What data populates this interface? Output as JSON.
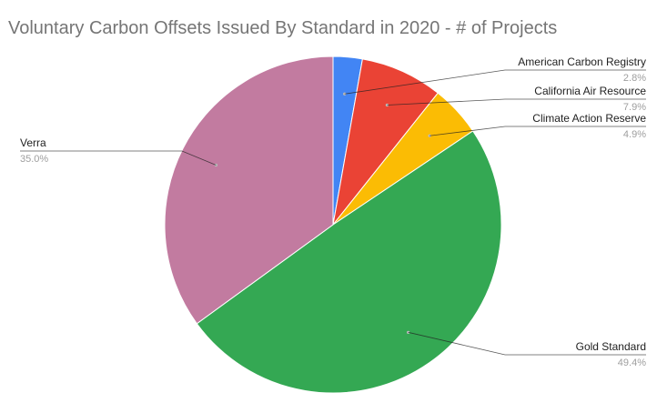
{
  "chart_data": {
    "type": "pie",
    "title": "Voluntary Carbon Offsets Issued By Standard in 2020 - # of Projects",
    "start_angle_deg": 0,
    "direction": "clockwise",
    "slices": [
      {
        "label": "American Carbon Registry",
        "value": 2.8,
        "display": "2.8%",
        "color": "#4285f4",
        "label_side": "right"
      },
      {
        "label": "California Air Resource",
        "value": 7.9,
        "display": "7.9%",
        "color": "#ea4335",
        "label_side": "right"
      },
      {
        "label": "Climate Action Reserve",
        "value": 4.9,
        "display": "4.9%",
        "color": "#fbbc04",
        "label_side": "right"
      },
      {
        "label": "Gold Standard",
        "value": 49.4,
        "display": "49.4%",
        "color": "#34a853",
        "label_side": "right"
      },
      {
        "label": "Verra",
        "value": 35.0,
        "display": "35.0%",
        "color": "#c27ba0",
        "label_side": "left"
      }
    ]
  }
}
